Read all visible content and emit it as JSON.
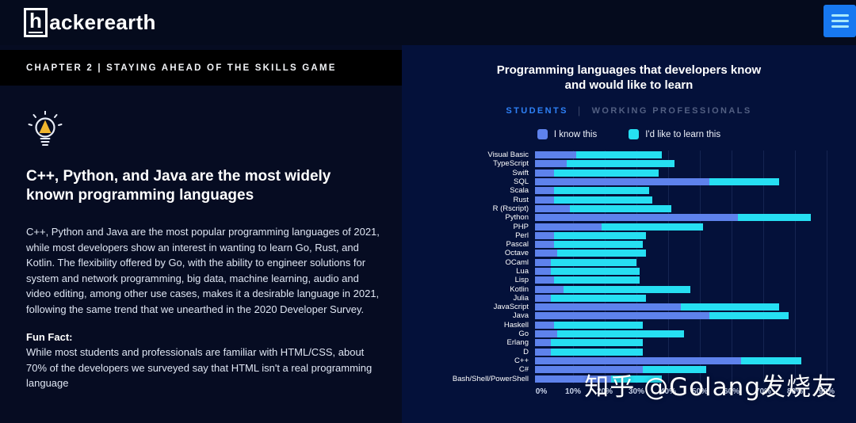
{
  "header": {
    "logo_h": "h",
    "logo_rest": "ackerearth",
    "menu_icon": "hamburger-icon",
    "menu_color": "#1778f0"
  },
  "left_panel": {
    "chapter_band": "CHAPTER 2 | STAYING AHEAD OF THE SKILLS GAME",
    "idea_icon": "lightbulb-icon",
    "heading": "C++, Python, and Java are the most widely known programming languages",
    "paragraph": "C++, Python and Java are the most popular programming languages of 2021, while most developers show an interest in wanting to learn Go, Rust, and Kotlin. The flexibility offered by Go, with the ability to engineer solutions for system and network programming, big data, machine learning, audio and video editing, among other use cases, makes it a desirable language in 2021, following the same trend that we unearthed in the 2020 Developer Survey.",
    "fun_fact_label": "Fun Fact:",
    "fun_fact_text": "While most students and professionals are familiar with HTML/CSS, about 70% of the developers we surveyed say that HTML isn't a real programming language"
  },
  "right_panel": {
    "tabs": [
      {
        "label": "STUDENTS",
        "active": true
      },
      {
        "label": "WORKING PROFESSIONALS",
        "active": false
      }
    ],
    "tab_divider": "|",
    "watermark": "知乎 @Golang发烧友"
  },
  "chart_data": {
    "type": "bar",
    "orientation": "horizontal",
    "stacked": true,
    "title": "Programming languages that developers know and would like to learn",
    "categories": [
      "Visual Basic",
      "TypeScript",
      "Swift",
      "SQL",
      "Scala",
      "Rust",
      "R (Rscript)",
      "Python",
      "PHP",
      "Perl",
      "Pascal",
      "Octave",
      "OCaml",
      "Lua",
      "Lisp",
      "Kotlin",
      "Julia",
      "JavaScript",
      "Java",
      "Haskell",
      "Go",
      "Erlang",
      "D",
      "C++",
      "C#",
      "Bash/Shell/PowerShell"
    ],
    "series": [
      {
        "name": "I know this",
        "color": "#5e82ec",
        "values": [
          13,
          10,
          6,
          55,
          6,
          6,
          11,
          64,
          21,
          6,
          6,
          7,
          5,
          5,
          6,
          9,
          5,
          46,
          55,
          6,
          7,
          5,
          5,
          65,
          34,
          24
        ]
      },
      {
        "name": "I'd like to learn this",
        "color": "#26dff2",
        "values": [
          27,
          34,
          33,
          22,
          30,
          31,
          32,
          23,
          32,
          29,
          28,
          28,
          27,
          28,
          27,
          40,
          30,
          31,
          25,
          28,
          40,
          29,
          29,
          19,
          20,
          16
        ]
      }
    ],
    "x_ticks": [
      "0%",
      "10%",
      "20%",
      "30%",
      "40%",
      "50%",
      "60%",
      "70%",
      "80%",
      "90%"
    ],
    "xlim": [
      0,
      93
    ],
    "grid": true,
    "legend_position": "top",
    "units": "percent"
  }
}
